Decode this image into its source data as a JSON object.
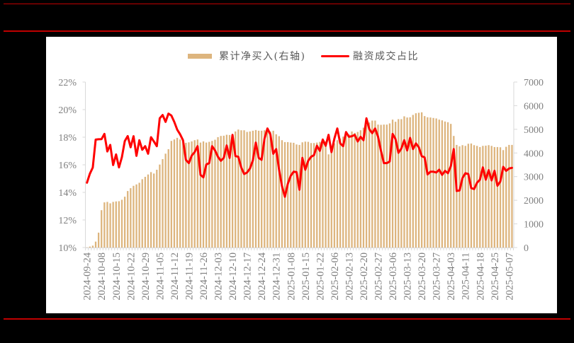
{
  "page": {
    "background": "#000000",
    "rule_color": "#C00000",
    "panel_color": "#FFFFFF"
  },
  "chart_data": {
    "type": "bar",
    "combo": "bar + line (dual axis)",
    "title": "",
    "xlabel": "",
    "ylabel": "",
    "y2label": "",
    "grid": false,
    "legend": {
      "position": "top",
      "entries": [
        "累计净买入(右轴)",
        "融资成交占比"
      ]
    },
    "ylim": [
      10,
      22
    ],
    "yticks": [
      22,
      20,
      18,
      16,
      14,
      12,
      10
    ],
    "ytick_labels": [
      "22%",
      "20%",
      "18%",
      "16%",
      "14%",
      "12%",
      "10%"
    ],
    "y2lim": [
      0,
      7000
    ],
    "y2ticks": [
      7000,
      6000,
      5000,
      4000,
      3000,
      2000,
      1000,
      0
    ],
    "y2tick_labels": [
      "7000",
      "6000",
      "5000",
      "4000",
      "3000",
      "2000",
      "1000",
      "0"
    ],
    "x_tick_labels": [
      "2024-09-24",
      "2024-10-08",
      "2024-10-15",
      "2024-10-22",
      "2024-10-29",
      "2024-11-05",
      "2024-11-12",
      "2024-11-19",
      "2024-11-26",
      "2024-12-03",
      "2024-12-10",
      "2024-12-17",
      "2024-12-24",
      "2024-12-31",
      "2025-01-08",
      "2025-01-15",
      "2025-01-22",
      "2025-02-06",
      "2025-02-13",
      "2025-02-20",
      "2025-02-27",
      "2025-03-06",
      "2025-03-13",
      "2025-03-20",
      "2025-03-27",
      "2025-04-03",
      "2025-04-11",
      "2025-04-18",
      "2025-04-25",
      "2025-05-07"
    ],
    "x": [
      "2024-09-24",
      "2024-09-25",
      "2024-09-26",
      "2024-09-27",
      "2024-09-30",
      "2024-10-08",
      "2024-10-09",
      "2024-10-10",
      "2024-10-11",
      "2024-10-14",
      "2024-10-15",
      "2024-10-16",
      "2024-10-17",
      "2024-10-18",
      "2024-10-21",
      "2024-10-22",
      "2024-10-23",
      "2024-10-24",
      "2024-10-25",
      "2024-10-28",
      "2024-10-29",
      "2024-10-30",
      "2024-10-31",
      "2024-11-01",
      "2024-11-04",
      "2024-11-05",
      "2024-11-06",
      "2024-11-07",
      "2024-11-08",
      "2024-11-11",
      "2024-11-12",
      "2024-11-13",
      "2024-11-14",
      "2024-11-15",
      "2024-11-18",
      "2024-11-19",
      "2024-11-20",
      "2024-11-21",
      "2024-11-22",
      "2024-11-25",
      "2024-11-26",
      "2024-11-27",
      "2024-11-28",
      "2024-11-29",
      "2024-12-02",
      "2024-12-03",
      "2024-12-04",
      "2024-12-05",
      "2024-12-06",
      "2024-12-09",
      "2024-12-10",
      "2024-12-11",
      "2024-12-12",
      "2024-12-13",
      "2024-12-16",
      "2024-12-17",
      "2024-12-18",
      "2024-12-19",
      "2024-12-20",
      "2024-12-23",
      "2024-12-24",
      "2024-12-25",
      "2024-12-26",
      "2024-12-27",
      "2024-12-30",
      "2024-12-31",
      "2025-01-02",
      "2025-01-03",
      "2025-01-06",
      "2025-01-07",
      "2025-01-08",
      "2025-01-09",
      "2025-01-10",
      "2025-01-13",
      "2025-01-14",
      "2025-01-15",
      "2025-01-16",
      "2025-01-17",
      "2025-01-20",
      "2025-01-21",
      "2025-01-22",
      "2025-01-23",
      "2025-01-24",
      "2025-01-27",
      "2025-02-05",
      "2025-02-06",
      "2025-02-07",
      "2025-02-10",
      "2025-02-11",
      "2025-02-12",
      "2025-02-13",
      "2025-02-14",
      "2025-02-17",
      "2025-02-18",
      "2025-02-19",
      "2025-02-20",
      "2025-02-21",
      "2025-02-24",
      "2025-02-25",
      "2025-02-26",
      "2025-02-27",
      "2025-02-28",
      "2025-03-03",
      "2025-03-04",
      "2025-03-05",
      "2025-03-06",
      "2025-03-07",
      "2025-03-10",
      "2025-03-11",
      "2025-03-12",
      "2025-03-13",
      "2025-03-14",
      "2025-03-17",
      "2025-03-18",
      "2025-03-19",
      "2025-03-20",
      "2025-03-21",
      "2025-03-24",
      "2025-03-25",
      "2025-03-26",
      "2025-03-27",
      "2025-03-28",
      "2025-03-31",
      "2025-04-01",
      "2025-04-02",
      "2025-04-03",
      "2025-04-07",
      "2025-04-08",
      "2025-04-09",
      "2025-04-10",
      "2025-04-11",
      "2025-04-14",
      "2025-04-15",
      "2025-04-16",
      "2025-04-17",
      "2025-04-18",
      "2025-04-21",
      "2025-04-22",
      "2025-04-23",
      "2025-04-24",
      "2025-04-25",
      "2025-04-28",
      "2025-04-29",
      "2025-04-30",
      "2025-05-06",
      "2025-05-07",
      "2025-05-08"
    ],
    "series": [
      {
        "name": "累计净买入(右轴)",
        "type": "bar",
        "axis": "right",
        "color": "#DDB57E",
        "values": [
          10,
          40,
          80,
          250,
          630,
          1580,
          1910,
          1930,
          1870,
          1930,
          1950,
          1960,
          2020,
          2150,
          2390,
          2510,
          2610,
          2670,
          2740,
          2890,
          2990,
          3090,
          3190,
          3130,
          3290,
          3510,
          3740,
          3970,
          4160,
          4510,
          4570,
          4640,
          4570,
          4510,
          4430,
          4450,
          4490,
          4540,
          4570,
          4440,
          4490,
          4440,
          4470,
          4510,
          4560,
          4670,
          4720,
          4730,
          4770,
          4760,
          4790,
          4910,
          4990,
          4960,
          4960,
          4890,
          4910,
          4940,
          4970,
          4940,
          4940,
          4960,
          4990,
          4910,
          4940,
          4790,
          4710,
          4540,
          4460,
          4460,
          4440,
          4430,
          4360,
          4340,
          4450,
          4480,
          4470,
          4420,
          4420,
          4440,
          4470,
          4470,
          4490,
          3940,
          4270,
          4410,
          4540,
          4610,
          4690,
          4740,
          4790,
          4910,
          4850,
          4890,
          4960,
          5070,
          5190,
          5290,
          5370,
          5370,
          5200,
          5190,
          5200,
          5200,
          5250,
          5410,
          5320,
          5430,
          5430,
          5550,
          5500,
          5510,
          5610,
          5680,
          5700,
          5720,
          5560,
          5510,
          5500,
          5480,
          5460,
          5410,
          5380,
          5330,
          5300,
          5230,
          4720,
          4340,
          4280,
          4330,
          4300,
          4390,
          4400,
          4330,
          4300,
          4250,
          4300,
          4310,
          4330,
          4300,
          4250,
          4250,
          4240,
          4120,
          4260,
          4340,
          4340
        ]
      },
      {
        "name": "融资成交占比",
        "type": "line",
        "axis": "left",
        "unit": "%",
        "color": "#FF0000",
        "values": [
          14.7,
          15.35,
          15.8,
          17.83,
          17.85,
          17.86,
          18.24,
          16.97,
          17.44,
          15.98,
          16.75,
          15.81,
          16.55,
          17.72,
          18.08,
          17.27,
          18.07,
          16.65,
          17.78,
          17.09,
          17.35,
          16.8,
          18.0,
          17.69,
          17.35,
          19.37,
          19.61,
          19.11,
          19.71,
          19.57,
          19.11,
          18.55,
          18.21,
          17.78,
          16.35,
          16.12,
          16.67,
          16.92,
          17.35,
          15.27,
          15.09,
          16.02,
          16.12,
          17.35,
          17.04,
          16.58,
          16.29,
          16.5,
          17.4,
          16.5,
          18.17,
          16.63,
          16.58,
          15.81,
          15.33,
          15.44,
          15.73,
          16.32,
          17.61,
          16.5,
          16.36,
          17.9,
          18.63,
          18.21,
          16.8,
          17.14,
          15.64,
          14.45,
          13.68,
          14.62,
          15.2,
          15.5,
          15.47,
          14.19,
          16.5,
          15.64,
          16.29,
          16.58,
          16.7,
          17.38,
          17.01,
          17.83,
          17.38,
          18.17,
          16.92,
          17.9,
          18.63,
          17.55,
          17.35,
          18.37,
          18.03,
          18.07,
          18.17,
          17.69,
          18.03,
          17.78,
          19.37,
          18.58,
          18.29,
          18.63,
          18.03,
          17.01,
          16.12,
          16.12,
          16.24,
          18.24,
          17.86,
          16.87,
          17.18,
          17.78,
          17.04,
          17.95,
          17.14,
          17.55,
          17.27,
          16.63,
          16.53,
          15.3,
          15.5,
          15.5,
          15.44,
          15.64,
          15.27,
          15.56,
          15.39,
          15.9,
          17.14,
          14.1,
          14.14,
          15.04,
          15.39,
          15.33,
          14.31,
          14.24,
          14.7,
          14.92,
          15.81,
          14.92,
          15.61,
          14.87,
          15.56,
          14.48,
          14.79,
          15.85,
          15.56,
          15.73,
          15.78
        ]
      }
    ]
  }
}
